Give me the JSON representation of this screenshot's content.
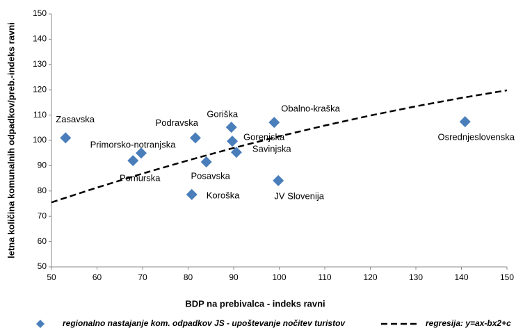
{
  "chart_data": {
    "type": "scatter",
    "x_label": "BDP na prebivalca - indeks ravni",
    "y_label": "letna količina komunalnih odpadkov/preb.-indeks ravni",
    "xlim": [
      50,
      150
    ],
    "xticks": [
      50,
      60,
      70,
      80,
      90,
      100,
      110,
      120,
      130,
      140,
      150
    ],
    "ylim": [
      50,
      150
    ],
    "yticks": [
      50,
      60,
      70,
      80,
      90,
      100,
      110,
      120,
      130,
      140,
      150
    ],
    "grid": false,
    "legend": "bottom",
    "series": [
      {
        "name": "regionalno nastajanje kom. odpadkov JS - upoštevanje nočitev turistov",
        "color": "#4a7ebb",
        "labels": [
          "Zasavska",
          "Primorsko-notranjska",
          "Pomurska",
          "Podravska",
          "Posavska",
          "Koroška",
          "Goriška",
          "Gorenjska",
          "Savinjska",
          "Obalno-kraška",
          "JV Slovenija",
          "Osrednjeslovenska"
        ],
        "x": [
          53.1,
          69.7,
          67.9,
          81.6,
          84,
          80.8,
          89.5,
          89.7,
          90.6,
          98.9,
          99.8,
          140.8
        ],
        "values": [
          101,
          95,
          92,
          101,
          91.5,
          78.6,
          105.2,
          99.7,
          95.3,
          107.1,
          84.1,
          107.4
        ]
      },
      {
        "name": "regresija: y=ax-bx2+c",
        "color": "#000000",
        "line": "dashed",
        "x": [
          50,
          60,
          70,
          80,
          90,
          100,
          110,
          120,
          130,
          140,
          150
        ],
        "values": [
          75.5,
          81.35,
          86.89,
          92.11,
          97.01,
          101.6,
          105.87,
          109.83,
          113.47,
          116.79,
          119.8
        ]
      }
    ]
  }
}
